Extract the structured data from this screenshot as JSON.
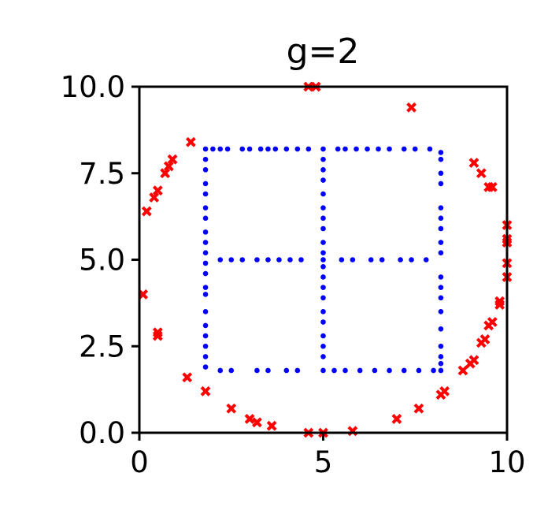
{
  "chart_data": {
    "type": "scatter",
    "title": "g=2",
    "xlabel": "",
    "ylabel": "",
    "xlim": [
      0,
      10
    ],
    "ylim": [
      0,
      10
    ],
    "xticks": [
      "0",
      "5",
      "10"
    ],
    "yticks": [
      "0.0",
      "2.5",
      "5.0",
      "7.5",
      "10.0"
    ],
    "grid": false,
    "legend": "none",
    "series": [
      {
        "color": "#0000ff",
        "marker": "circle",
        "points": [
          [
            1.8,
            8.2
          ],
          [
            2.0,
            8.2
          ],
          [
            2.2,
            8.2
          ],
          [
            2.4,
            8.2
          ],
          [
            2.8,
            8.2
          ],
          [
            3.0,
            8.2
          ],
          [
            3.3,
            8.2
          ],
          [
            3.5,
            8.2
          ],
          [
            3.7,
            8.2
          ],
          [
            4.0,
            8.2
          ],
          [
            4.3,
            8.2
          ],
          [
            4.6,
            8.2
          ],
          [
            5.0,
            8.2
          ],
          [
            5.4,
            8.2
          ],
          [
            5.6,
            8.2
          ],
          [
            5.9,
            8.2
          ],
          [
            6.2,
            8.2
          ],
          [
            6.5,
            8.2
          ],
          [
            6.8,
            8.2
          ],
          [
            7.2,
            8.2
          ],
          [
            7.5,
            8.2
          ],
          [
            7.9,
            8.2
          ],
          [
            8.2,
            8.1
          ],
          [
            1.8,
            7.9
          ],
          [
            1.8,
            7.6
          ],
          [
            1.8,
            7.2
          ],
          [
            1.8,
            6.9
          ],
          [
            1.8,
            6.5
          ],
          [
            1.8,
            6.2
          ],
          [
            1.8,
            5.8
          ],
          [
            1.8,
            5.5
          ],
          [
            1.8,
            5.2
          ],
          [
            1.8,
            4.9
          ],
          [
            1.8,
            4.6
          ],
          [
            1.8,
            4.2
          ],
          [
            1.8,
            4.0
          ],
          [
            1.8,
            3.5
          ],
          [
            1.8,
            3.1
          ],
          [
            1.8,
            2.8
          ],
          [
            1.8,
            2.5
          ],
          [
            1.8,
            2.2
          ],
          [
            1.8,
            1.9
          ],
          [
            2.2,
            1.8
          ],
          [
            2.5,
            1.8
          ],
          [
            3.2,
            1.8
          ],
          [
            3.5,
            1.8
          ],
          [
            4.0,
            1.8
          ],
          [
            4.3,
            1.8
          ],
          [
            5.0,
            1.8
          ],
          [
            5.3,
            1.8
          ],
          [
            5.6,
            1.8
          ],
          [
            6.0,
            1.8
          ],
          [
            6.4,
            1.8
          ],
          [
            6.8,
            1.8
          ],
          [
            7.2,
            1.8
          ],
          [
            7.6,
            1.8
          ],
          [
            8.0,
            1.8
          ],
          [
            8.2,
            1.8
          ],
          [
            8.2,
            7.9
          ],
          [
            8.2,
            7.5
          ],
          [
            8.2,
            7.2
          ],
          [
            8.2,
            6.5
          ],
          [
            8.2,
            6.2
          ],
          [
            8.2,
            5.9
          ],
          [
            8.2,
            5.5
          ],
          [
            8.2,
            5.2
          ],
          [
            8.2,
            4.5
          ],
          [
            8.2,
            4.2
          ],
          [
            8.2,
            3.9
          ],
          [
            8.2,
            3.5
          ],
          [
            8.2,
            3.0
          ],
          [
            8.2,
            2.5
          ],
          [
            8.2,
            2.2
          ],
          [
            8.2,
            2.0
          ],
          [
            2.2,
            5.0
          ],
          [
            2.5,
            5.0
          ],
          [
            2.8,
            5.0
          ],
          [
            3.2,
            5.0
          ],
          [
            3.5,
            5.0
          ],
          [
            3.8,
            5.0
          ],
          [
            4.1,
            5.0
          ],
          [
            4.4,
            5.0
          ],
          [
            5.0,
            5.0
          ],
          [
            5.5,
            5.0
          ],
          [
            5.8,
            5.0
          ],
          [
            6.3,
            5.0
          ],
          [
            6.6,
            5.0
          ],
          [
            7.1,
            5.0
          ],
          [
            7.4,
            5.0
          ],
          [
            7.8,
            5.0
          ],
          [
            5.0,
            7.9
          ],
          [
            5.0,
            7.6
          ],
          [
            5.0,
            7.3
          ],
          [
            5.0,
            6.9
          ],
          [
            5.0,
            6.5
          ],
          [
            5.0,
            6.2
          ],
          [
            5.0,
            5.9
          ],
          [
            5.0,
            5.5
          ],
          [
            5.0,
            5.2
          ],
          [
            5.0,
            4.8
          ],
          [
            5.0,
            4.5
          ],
          [
            5.0,
            4.2
          ],
          [
            5.0,
            3.9
          ],
          [
            5.0,
            3.5
          ],
          [
            5.0,
            3.2
          ],
          [
            5.0,
            2.8
          ],
          [
            5.0,
            2.5
          ],
          [
            5.0,
            2.2
          ]
        ]
      },
      {
        "color": "#ff0000",
        "marker": "x",
        "points": [
          [
            1.4,
            8.4
          ],
          [
            0.9,
            7.9
          ],
          [
            0.8,
            7.7
          ],
          [
            0.7,
            7.5
          ],
          [
            0.5,
            7.0
          ],
          [
            0.4,
            6.8
          ],
          [
            0.2,
            6.4
          ],
          [
            0.1,
            4.0
          ],
          [
            0.5,
            2.9
          ],
          [
            0.5,
            2.8
          ],
          [
            1.3,
            1.6
          ],
          [
            1.8,
            1.2
          ],
          [
            2.5,
            0.7
          ],
          [
            3.0,
            0.4
          ],
          [
            3.2,
            0.3
          ],
          [
            3.6,
            0.2
          ],
          [
            4.6,
            0.0
          ],
          [
            5.0,
            0.0
          ],
          [
            5.8,
            0.05
          ],
          [
            7.0,
            0.4
          ],
          [
            7.6,
            0.7
          ],
          [
            8.2,
            1.1
          ],
          [
            8.3,
            1.2
          ],
          [
            8.8,
            1.8
          ],
          [
            9.0,
            2.0
          ],
          [
            9.1,
            2.1
          ],
          [
            9.3,
            2.6
          ],
          [
            9.4,
            2.7
          ],
          [
            9.5,
            3.1
          ],
          [
            9.6,
            3.2
          ],
          [
            9.8,
            3.7
          ],
          [
            9.8,
            3.8
          ],
          [
            10.0,
            4.5
          ],
          [
            10.0,
            4.9
          ],
          [
            10.0,
            5.5
          ],
          [
            10.0,
            5.6
          ],
          [
            10.0,
            6.0
          ],
          [
            9.5,
            7.1
          ],
          [
            9.6,
            7.1
          ],
          [
            9.3,
            7.5
          ],
          [
            9.1,
            7.8
          ],
          [
            7.4,
            9.4
          ],
          [
            4.6,
            10.0
          ],
          [
            4.8,
            10.0
          ]
        ]
      }
    ]
  }
}
